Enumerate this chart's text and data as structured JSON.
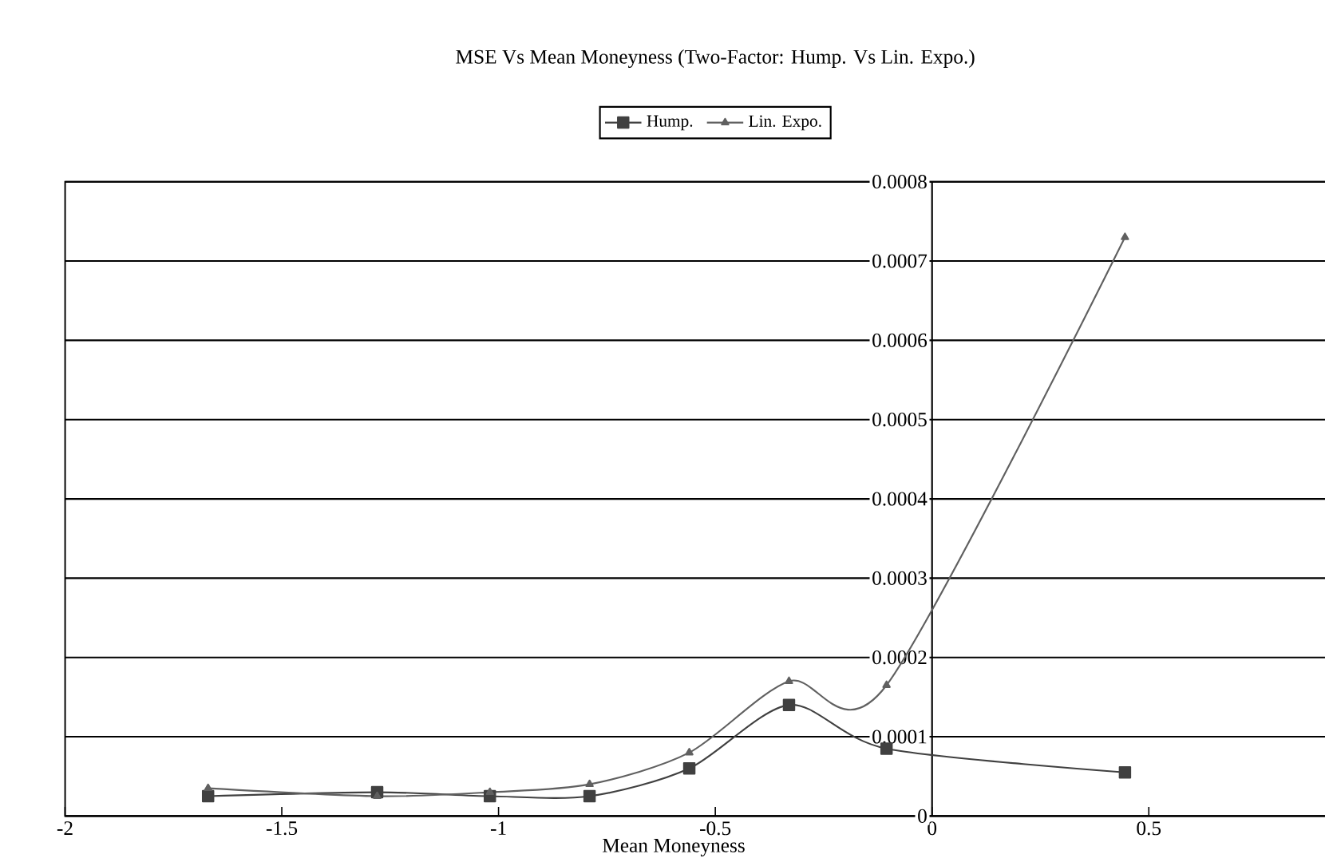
{
  "chart_data": {
    "type": "line",
    "title": "MSE Vs Mean Moneyness (Two-Factor: Hump. Vs Lin. Expo.)",
    "xlabel": "Mean Moneyness",
    "series": [
      {
        "name": "Hump.",
        "color": "#404040",
        "marker": "square",
        "x": [
          -1.67,
          -1.28,
          -1.02,
          -0.79,
          -0.56,
          -0.33,
          -0.105,
          0.445
        ],
        "values": [
          2.5e-05,
          3e-05,
          2.5e-05,
          2.5e-05,
          6e-05,
          0.00014,
          8.5e-05,
          5.5e-05
        ]
      },
      {
        "name": "Lin. Expo.",
        "color": "#606060",
        "marker": "triangle",
        "x": [
          -1.67,
          -1.28,
          -1.02,
          -0.79,
          -0.56,
          -0.33,
          -0.105,
          0.445
        ],
        "values": [
          3.5e-05,
          2.5e-05,
          3e-05,
          4e-05,
          8e-05,
          0.00017,
          0.000165,
          0.00073
        ]
      }
    ],
    "xlim": [
      -2,
      1
    ],
    "ylim": [
      0,
      0.0008
    ],
    "xticks": [
      -2,
      -1.5,
      -1,
      -0.5,
      0,
      0.5
    ],
    "yticks": [
      0,
      0.0001,
      0.0002,
      0.0003,
      0.0004,
      0.0005,
      0.0006,
      0.0007,
      0.0008
    ],
    "grid": "y",
    "legend": "top"
  }
}
